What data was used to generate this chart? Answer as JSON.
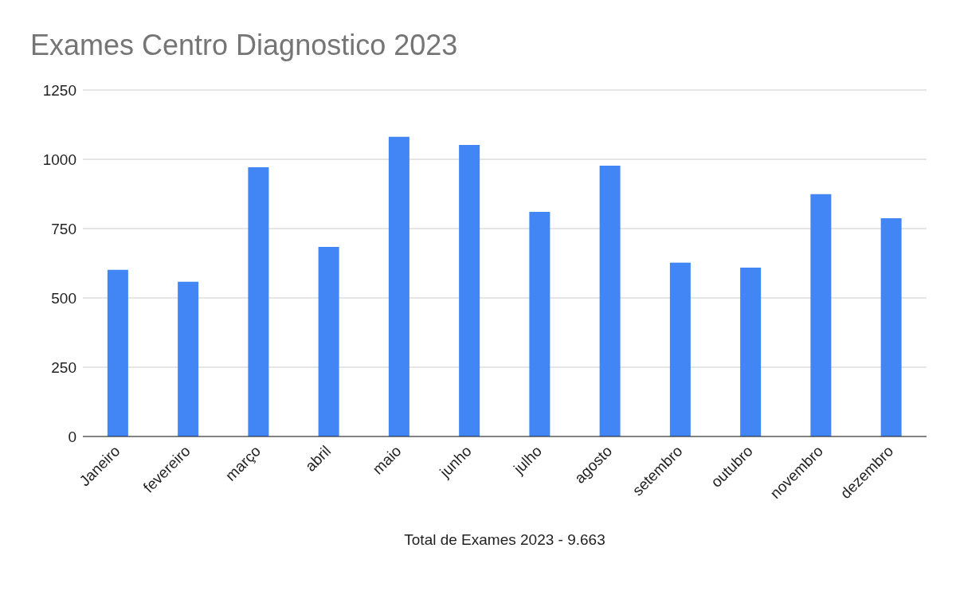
{
  "chart_data": {
    "type": "bar",
    "title": "Exames Centro Diagnostico 2023",
    "xlabel": "Total de Exames 2023 - 9.663",
    "categories": [
      "Janeiro",
      "fevereiro",
      "março",
      "abril",
      "maio",
      "junho",
      "julho",
      "agosto",
      "setembro",
      "outubro",
      "novembro",
      "dezembro"
    ],
    "values": [
      601,
      558,
      971,
      684,
      1081,
      1052,
      810,
      977,
      627,
      609,
      874,
      787
    ],
    "color": "#4285f4",
    "ylim": [
      0,
      1250
    ],
    "yticks": [
      0,
      250,
      500,
      750,
      1000,
      1250
    ],
    "grid": "y",
    "legend": false
  }
}
